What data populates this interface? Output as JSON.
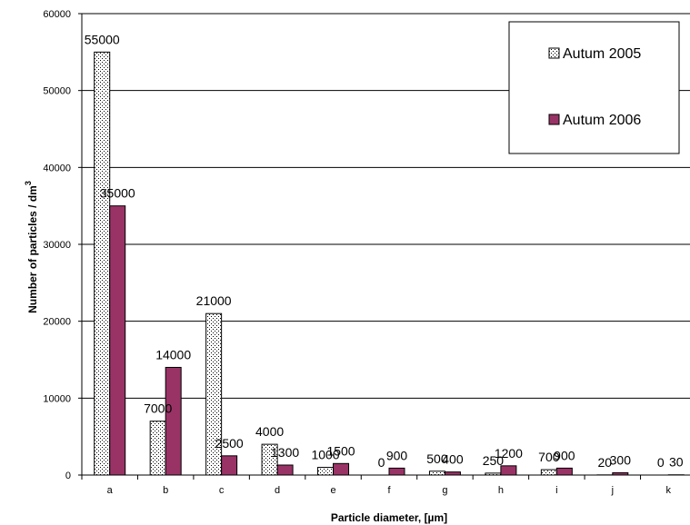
{
  "chart_data": {
    "type": "bar",
    "title": "",
    "xlabel": "Particle diameter, [µm]",
    "ylabel": "Number of particles / dm",
    "ylabel_superscript": "3",
    "categories": [
      "a",
      "b",
      "c",
      "d",
      "e",
      "f",
      "g",
      "h",
      "i",
      "j",
      "k"
    ],
    "ylim": [
      0,
      60000
    ],
    "yticks": [
      "0",
      "10000",
      "20000",
      "30000",
      "40000",
      "50000",
      "60000"
    ],
    "grid": true,
    "legend_position": "top-right",
    "series": [
      {
        "name": "Autum 2005",
        "color": "#ffffff",
        "pattern": "dotted",
        "values": [
          55000,
          7000,
          21000,
          4000,
          1000,
          0,
          500,
          250,
          700,
          20,
          0
        ],
        "labels": [
          "55000",
          "7000",
          "21000",
          "4000",
          "1000",
          "0",
          "500",
          "250",
          "700",
          "20",
          "0"
        ]
      },
      {
        "name": "Autum 2006",
        "color": "#993366",
        "pattern": "solid",
        "values": [
          35000,
          14000,
          2500,
          1300,
          1500,
          900,
          400,
          1200,
          900,
          300,
          30
        ],
        "labels": [
          "35000",
          "14000",
          "2500",
          "1300",
          "1500",
          "900",
          "400",
          "1200",
          "900",
          "300",
          "30"
        ]
      }
    ]
  }
}
